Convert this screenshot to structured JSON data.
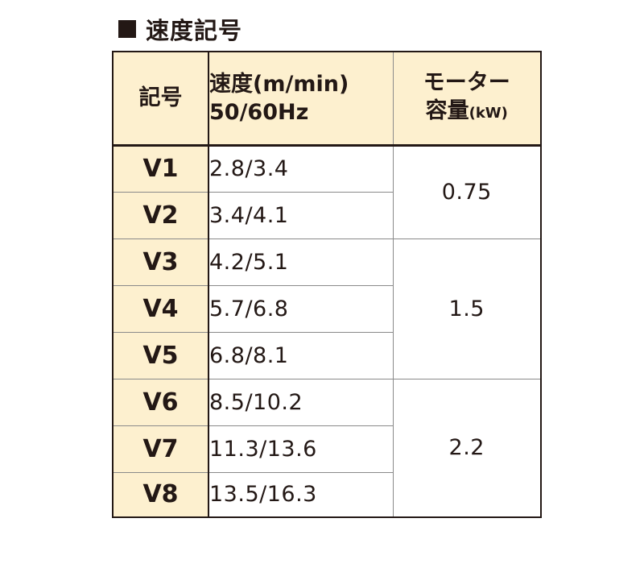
{
  "title": {
    "icon": "square-bullet-icon",
    "text": "速度記号"
  },
  "table": {
    "headers": {
      "code": "記号",
      "speed_line1": "速度(m/min)",
      "speed_line2": "50/60Hz",
      "motor_line1": "モーター",
      "motor_line2": "容量",
      "motor_unit": "(kW)"
    },
    "rows": [
      {
        "code": "V1",
        "speed": "2.8/3.4"
      },
      {
        "code": "V2",
        "speed": "3.4/4.1"
      },
      {
        "code": "V3",
        "speed": "4.2/5.1"
      },
      {
        "code": "V4",
        "speed": "5.7/6.8"
      },
      {
        "code": "V5",
        "speed": "6.8/8.1"
      },
      {
        "code": "V6",
        "speed": "8.5/10.2"
      },
      {
        "code": "V7",
        "speed": "11.3/13.6"
      },
      {
        "code": "V8",
        "speed": "13.5/16.3"
      }
    ],
    "motor_groups": [
      {
        "value": "0.75",
        "rows": 2
      },
      {
        "value": "1.5",
        "rows": 3
      },
      {
        "value": "2.2",
        "rows": 3
      }
    ]
  },
  "colors": {
    "header_fill": "#fdf0cf",
    "text": "#231815",
    "border": "#231815"
  }
}
